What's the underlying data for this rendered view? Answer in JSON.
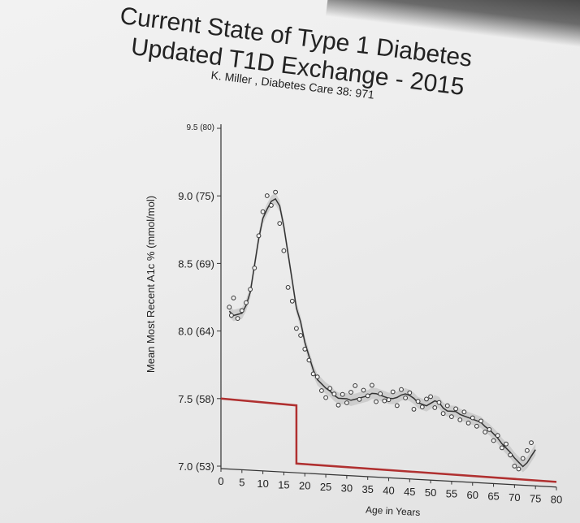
{
  "slide": {
    "title_line1": "Current State of Type 1 Diabetes",
    "title_line2": "Updated T1D Exchange - 2015",
    "subtitle": "K. Miller , Diabetes Care 38: 971"
  },
  "colors": {
    "background": "#ececec",
    "data_line": "#333333",
    "target_line": "#b03030",
    "confidence_band": "#bdbdbd"
  },
  "chart_data": {
    "type": "line",
    "title": "",
    "xlabel": "Age in Years",
    "ylabel": "Mean Most Recent A1c % (mmol/mol)",
    "xlim": [
      0,
      80
    ],
    "ylim": [
      7.0,
      9.5
    ],
    "x_ticks": [
      0,
      5,
      10,
      15,
      20,
      25,
      30,
      35,
      40,
      45,
      50,
      55,
      60,
      65,
      70,
      75,
      80
    ],
    "y_ticks": [
      {
        "value": 7.0,
        "label": "7.0 (53)"
      },
      {
        "value": 7.5,
        "label": "7.5 (58)"
      },
      {
        "value": 8.0,
        "label": "8.0 (64)"
      },
      {
        "value": 8.5,
        "label": "8.5 (69)"
      },
      {
        "value": 9.0,
        "label": "9.0 (75)"
      },
      {
        "value": 9.5,
        "label": "9.5 (80)"
      }
    ],
    "series": [
      {
        "kind": "mean_a1c",
        "x": [
          2,
          3,
          4,
          5,
          6,
          7,
          8,
          9,
          10,
          11,
          12,
          13,
          14,
          15,
          16,
          17,
          18,
          19,
          20,
          21,
          22,
          23,
          24,
          25,
          26,
          27,
          28,
          29,
          30,
          31,
          32,
          33,
          34,
          35,
          36,
          37,
          38,
          39,
          40,
          41,
          42,
          43,
          44,
          45,
          46,
          47,
          48,
          49,
          50,
          51,
          52,
          53,
          54,
          55,
          56,
          57,
          58,
          59,
          60,
          61,
          62,
          63,
          64,
          65,
          66,
          67,
          68,
          69,
          70,
          71,
          72,
          73,
          74,
          75
        ],
        "y": [
          8.15,
          8.12,
          8.13,
          8.14,
          8.2,
          8.3,
          8.5,
          8.7,
          8.85,
          8.92,
          8.98,
          9.0,
          8.95,
          8.8,
          8.6,
          8.4,
          8.2,
          8.1,
          7.95,
          7.85,
          7.75,
          7.68,
          7.65,
          7.62,
          7.6,
          7.57,
          7.55,
          7.55,
          7.55,
          7.54,
          7.55,
          7.56,
          7.57,
          7.58,
          7.6,
          7.6,
          7.59,
          7.58,
          7.57,
          7.57,
          7.58,
          7.6,
          7.61,
          7.6,
          7.58,
          7.55,
          7.54,
          7.53,
          7.55,
          7.57,
          7.56,
          7.52,
          7.5,
          7.5,
          7.5,
          7.48,
          7.47,
          7.46,
          7.45,
          7.44,
          7.43,
          7.4,
          7.38,
          7.35,
          7.32,
          7.28,
          7.25,
          7.22,
          7.18,
          7.15,
          7.12,
          7.15,
          7.2,
          7.25
        ]
      },
      {
        "kind": "target",
        "x": [
          0,
          18,
          18,
          80
        ],
        "y": [
          7.5,
          7.48,
          7.05,
          7.02
        ]
      }
    ],
    "points": {
      "x": [
        2,
        2.5,
        3,
        4,
        5,
        6,
        7,
        8,
        9,
        10,
        11,
        12,
        13,
        14,
        15,
        16,
        17,
        18,
        19,
        20,
        21,
        22,
        23,
        24,
        25,
        26,
        27,
        28,
        29,
        30,
        31,
        32,
        33,
        34,
        35,
        36,
        37,
        38,
        39,
        40,
        41,
        42,
        43,
        44,
        45,
        46,
        47,
        48,
        49,
        50,
        51,
        52,
        53,
        54,
        55,
        56,
        57,
        58,
        59,
        60,
        61,
        62,
        63,
        64,
        65,
        66,
        67,
        68,
        69,
        70,
        71,
        72,
        73,
        74
      ],
      "y": [
        8.18,
        8.12,
        8.25,
        8.1,
        8.16,
        8.22,
        8.32,
        8.48,
        8.72,
        8.9,
        9.02,
        8.95,
        9.05,
        8.82,
        8.62,
        8.35,
        8.25,
        8.05,
        8.0,
        7.9,
        7.82,
        7.72,
        7.7,
        7.6,
        7.55,
        7.62,
        7.58,
        7.5,
        7.58,
        7.52,
        7.6,
        7.65,
        7.55,
        7.62,
        7.58,
        7.66,
        7.54,
        7.6,
        7.55,
        7.56,
        7.62,
        7.52,
        7.64,
        7.58,
        7.62,
        7.5,
        7.56,
        7.52,
        7.58,
        7.6,
        7.52,
        7.56,
        7.48,
        7.54,
        7.46,
        7.52,
        7.44,
        7.5,
        7.42,
        7.46,
        7.4,
        7.44,
        7.36,
        7.38,
        7.3,
        7.34,
        7.25,
        7.28,
        7.2,
        7.12,
        7.1,
        7.18,
        7.24,
        7.3
      ]
    }
  }
}
